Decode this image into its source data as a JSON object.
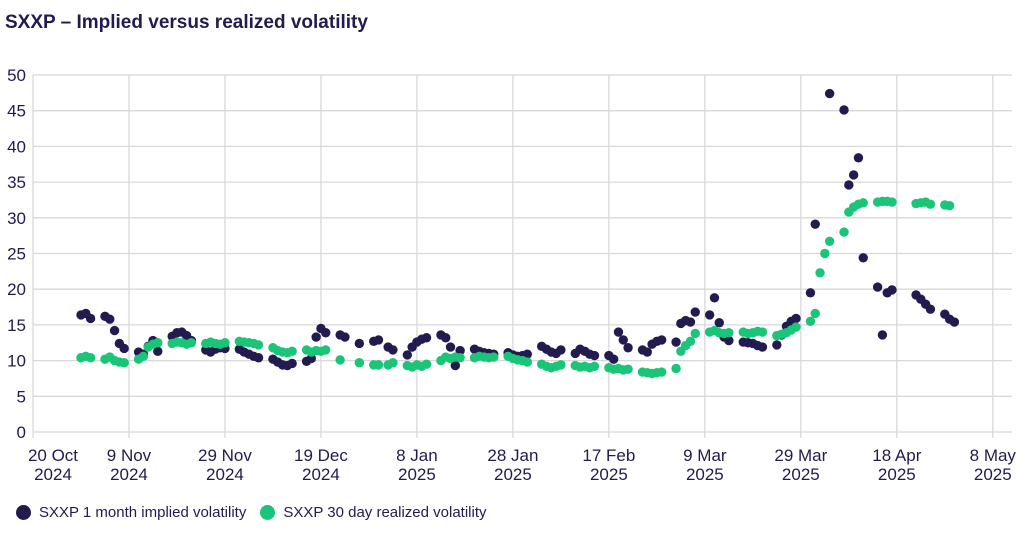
{
  "title": "SXXP – Implied versus realized volatility",
  "colors": {
    "implied": "#221B4F",
    "realized": "#1AC578",
    "grid": "#D8D8D8",
    "text": "#221B4F",
    "background": "#FFFFFF"
  },
  "legend": [
    {
      "label": "SXXP 1 month implied volatility",
      "series": "implied"
    },
    {
      "label": "SXXP 30 day realized volatility",
      "series": "realized"
    }
  ],
  "chart_data": {
    "type": "scatter",
    "title": "SXXP – Implied versus realized volatility",
    "xlabel": "",
    "ylabel": "",
    "x_unit": "days since 20 Oct 2024",
    "xlim": [
      0,
      204
    ],
    "ylim": [
      0,
      50
    ],
    "grid": true,
    "legend_position": "bottom-left",
    "y_ticks": [
      0,
      5,
      10,
      15,
      20,
      25,
      30,
      35,
      40,
      45,
      50
    ],
    "x_ticks": [
      {
        "offset": 0,
        "line1": "20 Oct",
        "line2": "2024"
      },
      {
        "offset": 20,
        "line1": "9 Nov",
        "line2": "2024"
      },
      {
        "offset": 40,
        "line1": "29 Nov",
        "line2": "2024"
      },
      {
        "offset": 60,
        "line1": "19 Dec",
        "line2": "2024"
      },
      {
        "offset": 80,
        "line1": "8 Jan",
        "line2": "2025"
      },
      {
        "offset": 100,
        "line1": "28 Jan",
        "line2": "2025"
      },
      {
        "offset": 120,
        "line1": "17 Feb",
        "line2": "2025"
      },
      {
        "offset": 140,
        "line1": "9 Mar",
        "line2": "2025"
      },
      {
        "offset": 160,
        "line1": "29 Mar",
        "line2": "2025"
      },
      {
        "offset": 180,
        "line1": "18 Apr",
        "line2": "2025"
      },
      {
        "offset": 200,
        "line1": "8 May",
        "line2": "2025"
      }
    ],
    "series": [
      {
        "name": "SXXP 1 month implied volatility",
        "color_key": "implied",
        "points": [
          [
            10,
            16.4
          ],
          [
            11,
            16.6
          ],
          [
            12,
            15.9
          ],
          [
            15,
            16.2
          ],
          [
            16,
            15.8
          ],
          [
            17,
            14.2
          ],
          [
            18,
            12.4
          ],
          [
            19,
            11.7
          ],
          [
            22,
            11.2
          ],
          [
            23,
            10.9
          ],
          [
            24,
            12.0
          ],
          [
            25,
            12.8
          ],
          [
            26,
            11.3
          ],
          [
            29,
            13.4
          ],
          [
            30,
            13.9
          ],
          [
            31,
            14.0
          ],
          [
            32,
            13.5
          ],
          [
            33,
            12.8
          ],
          [
            36,
            11.5
          ],
          [
            37,
            11.2
          ],
          [
            38,
            11.6
          ],
          [
            39,
            11.8
          ],
          [
            40,
            11.7
          ],
          [
            43,
            11.6
          ],
          [
            44,
            11.2
          ],
          [
            45,
            10.9
          ],
          [
            46,
            10.6
          ],
          [
            47,
            10.4
          ],
          [
            50,
            10.2
          ],
          [
            51,
            9.8
          ],
          [
            52,
            9.4
          ],
          [
            53,
            9.3
          ],
          [
            54,
            9.6
          ],
          [
            57,
            9.9
          ],
          [
            58,
            10.3
          ],
          [
            59,
            13.3
          ],
          [
            60,
            14.5
          ],
          [
            61,
            13.9
          ],
          [
            64,
            13.6
          ],
          [
            65,
            13.3
          ],
          [
            68,
            12.4
          ],
          [
            71,
            12.7
          ],
          [
            72,
            12.9
          ],
          [
            74,
            11.9
          ],
          [
            75,
            11.5
          ],
          [
            78,
            10.8
          ],
          [
            79,
            11.9
          ],
          [
            80,
            12.6
          ],
          [
            81,
            13.0
          ],
          [
            82,
            13.2
          ],
          [
            85,
            13.6
          ],
          [
            86,
            13.2
          ],
          [
            87,
            11.9
          ],
          [
            88,
            9.3
          ],
          [
            89,
            11.4
          ],
          [
            92,
            11.6
          ],
          [
            93,
            11.3
          ],
          [
            94,
            11.1
          ],
          [
            95,
            11.0
          ],
          [
            96,
            10.9
          ],
          [
            99,
            11.1
          ],
          [
            100,
            10.8
          ],
          [
            101,
            10.6
          ],
          [
            102,
            10.7
          ],
          [
            103,
            10.9
          ],
          [
            106,
            12.0
          ],
          [
            107,
            11.6
          ],
          [
            108,
            11.2
          ],
          [
            109,
            11.0
          ],
          [
            110,
            11.5
          ],
          [
            113,
            11.0
          ],
          [
            114,
            11.6
          ],
          [
            115,
            11.3
          ],
          [
            116,
            10.9
          ],
          [
            117,
            10.7
          ],
          [
            120,
            10.7
          ],
          [
            121,
            10.2
          ],
          [
            122,
            14.0
          ],
          [
            123,
            12.9
          ],
          [
            124,
            11.8
          ],
          [
            127,
            11.5
          ],
          [
            128,
            11.2
          ],
          [
            129,
            12.3
          ],
          [
            130,
            12.7
          ],
          [
            131,
            12.9
          ],
          [
            134,
            12.6
          ],
          [
            135,
            15.2
          ],
          [
            136,
            15.6
          ],
          [
            137,
            15.4
          ],
          [
            138,
            16.8
          ],
          [
            141,
            16.4
          ],
          [
            142,
            18.8
          ],
          [
            143,
            15.3
          ],
          [
            144,
            13.3
          ],
          [
            145,
            12.8
          ],
          [
            148,
            12.6
          ],
          [
            149,
            12.5
          ],
          [
            150,
            12.4
          ],
          [
            151,
            12.1
          ],
          [
            152,
            11.9
          ],
          [
            155,
            12.2
          ],
          [
            156,
            13.6
          ],
          [
            157,
            14.8
          ],
          [
            158,
            15.5
          ],
          [
            159,
            15.9
          ],
          [
            162,
            19.5
          ],
          [
            163,
            29.1
          ],
          [
            166,
            47.4
          ],
          [
            169,
            45.1
          ],
          [
            170,
            34.6
          ],
          [
            171,
            36.0
          ],
          [
            172,
            38.4
          ],
          [
            173,
            24.4
          ],
          [
            176,
            20.3
          ],
          [
            177,
            13.6
          ],
          [
            178,
            19.5
          ],
          [
            179,
            19.9
          ],
          [
            184,
            19.2
          ],
          [
            185,
            18.6
          ],
          [
            186,
            17.9
          ],
          [
            187,
            17.2
          ],
          [
            190,
            16.5
          ],
          [
            191,
            15.8
          ],
          [
            192,
            15.4
          ]
        ]
      },
      {
        "name": "SXXP 30 day realized volatility",
        "color_key": "realized",
        "points": [
          [
            10,
            10.4
          ],
          [
            11,
            10.6
          ],
          [
            12,
            10.4
          ],
          [
            15,
            10.2
          ],
          [
            16,
            10.5
          ],
          [
            17,
            10.0
          ],
          [
            18,
            9.8
          ],
          [
            19,
            9.7
          ],
          [
            22,
            10.2
          ],
          [
            23,
            10.6
          ],
          [
            24,
            11.9
          ],
          [
            25,
            12.3
          ],
          [
            26,
            12.5
          ],
          [
            29,
            12.4
          ],
          [
            30,
            12.6
          ],
          [
            31,
            12.5
          ],
          [
            32,
            12.3
          ],
          [
            33,
            12.5
          ],
          [
            36,
            12.4
          ],
          [
            37,
            12.6
          ],
          [
            38,
            12.4
          ],
          [
            39,
            12.3
          ],
          [
            40,
            12.5
          ],
          [
            43,
            12.7
          ],
          [
            44,
            12.6
          ],
          [
            45,
            12.5
          ],
          [
            46,
            12.4
          ],
          [
            47,
            12.2
          ],
          [
            50,
            11.8
          ],
          [
            51,
            11.4
          ],
          [
            52,
            11.2
          ],
          [
            53,
            11.1
          ],
          [
            54,
            11.3
          ],
          [
            57,
            11.5
          ],
          [
            58,
            11.2
          ],
          [
            59,
            11.4
          ],
          [
            60,
            11.3
          ],
          [
            61,
            11.5
          ],
          [
            64,
            10.1
          ],
          [
            68,
            9.7
          ],
          [
            71,
            9.4
          ],
          [
            72,
            9.4
          ],
          [
            74,
            9.4
          ],
          [
            75,
            9.7
          ],
          [
            78,
            9.3
          ],
          [
            79,
            9.1
          ],
          [
            80,
            9.4
          ],
          [
            81,
            9.2
          ],
          [
            82,
            9.5
          ],
          [
            85,
            10.0
          ],
          [
            86,
            10.5
          ],
          [
            87,
            10.3
          ],
          [
            88,
            10.5
          ],
          [
            89,
            10.4
          ],
          [
            92,
            10.4
          ],
          [
            93,
            10.6
          ],
          [
            94,
            10.5
          ],
          [
            95,
            10.4
          ],
          [
            96,
            10.5
          ],
          [
            99,
            10.6
          ],
          [
            100,
            10.3
          ],
          [
            101,
            10.1
          ],
          [
            102,
            10.0
          ],
          [
            103,
            9.8
          ],
          [
            106,
            9.5
          ],
          [
            107,
            9.2
          ],
          [
            108,
            9.0
          ],
          [
            109,
            9.2
          ],
          [
            110,
            9.4
          ],
          [
            113,
            9.3
          ],
          [
            114,
            9.1
          ],
          [
            115,
            9.2
          ],
          [
            116,
            9.0
          ],
          [
            117,
            9.2
          ],
          [
            120,
            9.0
          ],
          [
            121,
            8.8
          ],
          [
            122,
            8.9
          ],
          [
            123,
            8.7
          ],
          [
            124,
            8.8
          ],
          [
            127,
            8.4
          ],
          [
            128,
            8.3
          ],
          [
            129,
            8.2
          ],
          [
            130,
            8.3
          ],
          [
            131,
            8.4
          ],
          [
            134,
            8.9
          ],
          [
            135,
            11.3
          ],
          [
            136,
            12.1
          ],
          [
            137,
            12.7
          ],
          [
            138,
            13.8
          ],
          [
            141,
            14.0
          ],
          [
            142,
            14.2
          ],
          [
            143,
            13.9
          ],
          [
            144,
            13.8
          ],
          [
            145,
            13.9
          ],
          [
            148,
            14.0
          ],
          [
            149,
            13.8
          ],
          [
            150,
            13.9
          ],
          [
            151,
            14.1
          ],
          [
            152,
            14.0
          ],
          [
            155,
            13.5
          ],
          [
            156,
            13.7
          ],
          [
            157,
            13.9
          ],
          [
            158,
            14.3
          ],
          [
            159,
            14.7
          ],
          [
            162,
            15.5
          ],
          [
            163,
            16.6
          ],
          [
            164,
            22.3
          ],
          [
            165,
            25.0
          ],
          [
            166,
            26.7
          ],
          [
            169,
            28.0
          ],
          [
            170,
            30.8
          ],
          [
            171,
            31.5
          ],
          [
            172,
            31.9
          ],
          [
            173,
            32.1
          ],
          [
            176,
            32.2
          ],
          [
            177,
            32.3
          ],
          [
            178,
            32.3
          ],
          [
            179,
            32.2
          ],
          [
            184,
            32.0
          ],
          [
            185,
            32.1
          ],
          [
            186,
            32.2
          ],
          [
            187,
            31.9
          ],
          [
            190,
            31.8
          ],
          [
            191,
            31.7
          ]
        ]
      }
    ]
  }
}
